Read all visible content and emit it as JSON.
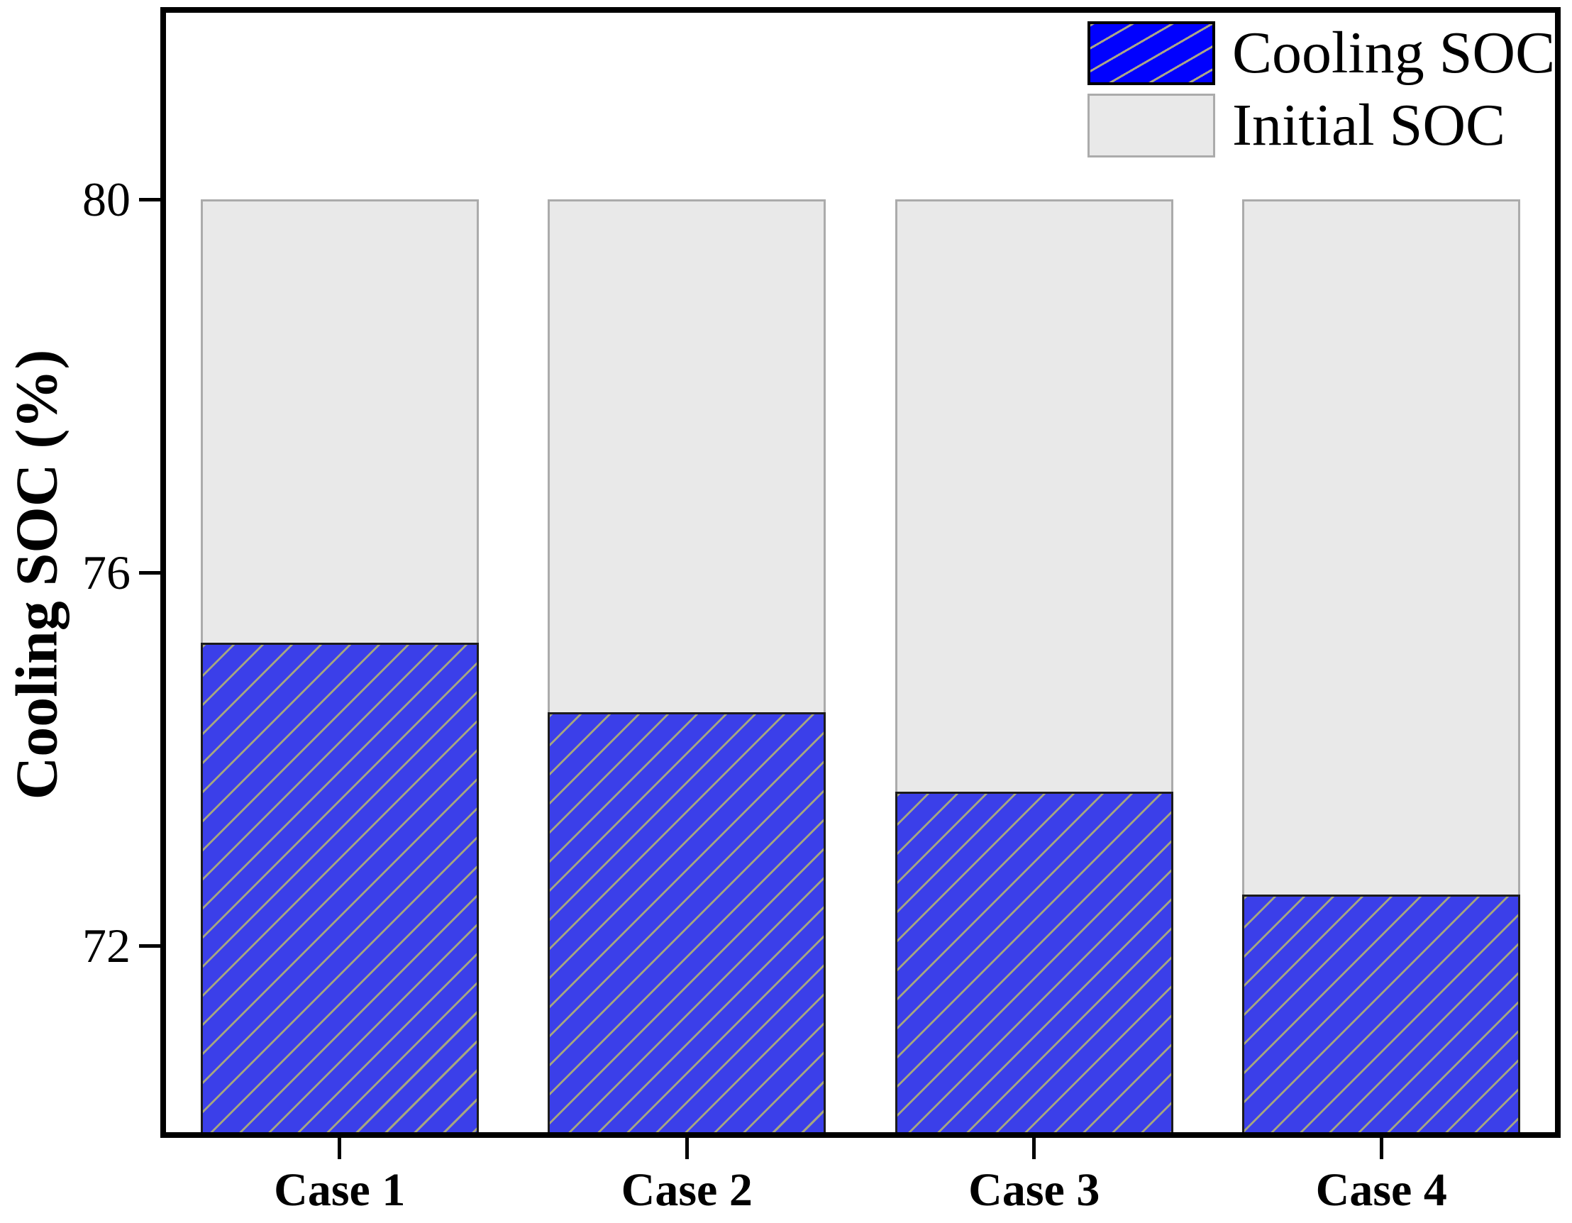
{
  "figure": {
    "background": "#ffffff",
    "axis_color": "#000000"
  },
  "chart_data": {
    "type": "bar",
    "variant": "overlay-stacked",
    "title": "",
    "xlabel": "",
    "ylabel": "Cooling SOC (%)",
    "categories": [
      "Case 1",
      "Case 2",
      "Case 3",
      "Case 4"
    ],
    "series": [
      {
        "name": "Cooling SOC",
        "values": [
          75.25,
          74.5,
          73.65,
          72.55
        ],
        "fill": "#3B3FE9",
        "legend_fill": "#0101FE",
        "hatch": "diagonal-up",
        "hatch_color": "#ABAB7A",
        "border_color": "#1C1C1C"
      },
      {
        "name": "Initial SOC",
        "values": [
          80,
          80,
          80,
          80
        ],
        "fill": "#E9E9E9",
        "hatch": "none",
        "border_color": "#ABABAB"
      }
    ],
    "ylim": [
      70,
      82
    ],
    "yticks": [
      "72",
      "76",
      "80"
    ],
    "ytick_values": [
      72,
      76,
      80
    ],
    "grid": false,
    "legend_position": "top-right",
    "legend_labels": [
      "Cooling SOC",
      "Initial SOC"
    ],
    "bar_width_fraction": 0.8
  }
}
